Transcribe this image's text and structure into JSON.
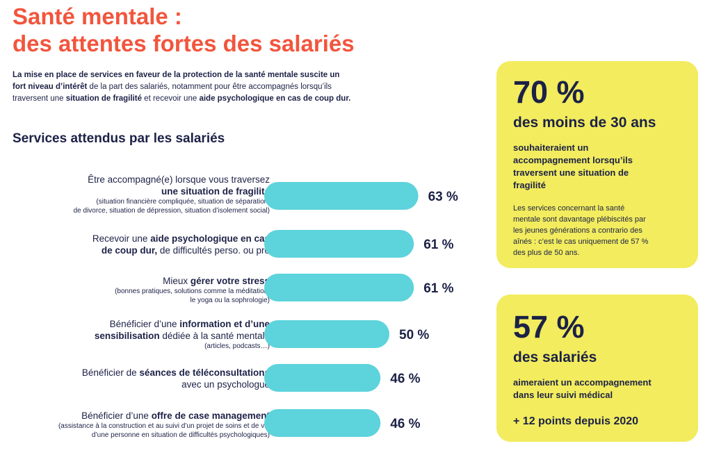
{
  "title": {
    "line1": "Santé mentale :",
    "line2": "des attentes fortes des salariés"
  },
  "intro": {
    "b1": "La mise en place de services en faveur de la protection de la santé mentale suscite un",
    "b2": "fort niveau d’intérêt",
    "t1": " de la part des salariés, notamment pour être accompagnés lorsqu’ils",
    "t2": "traversent une ",
    "b3": "situation de fragilité",
    "t3": " et recevoir une ",
    "b4": "aide psychologique en cas de coup dur."
  },
  "section_title": "Services attendus par les salariés",
  "colors": {
    "title": "#f2553d",
    "bar": "#5dd3dc",
    "card": "#f2ec5e",
    "text": "#1c2146"
  },
  "labels": [
    {
      "l1a": "Être accompagné(e) lorsque vous traversez",
      "l2b": "une situation de fragilité",
      "s1": "(situation financière compliquée, situation de séparation,",
      "s2": "de divorce, situation de dépression, situation d’isolement social)"
    },
    {
      "l1a": "Recevoir une ",
      "l1b": "aide psychologique en cas",
      "l2b": "de coup dur,",
      "l2a": " de difficultés perso. ou pro"
    },
    {
      "l1a": "Mieux ",
      "l1b": "gérer votre stress",
      "s1": "(bonnes pratiques, solutions comme la méditation,",
      "s2": "le yoga ou la sophrologie)"
    },
    {
      "l1a": "Bénéficier d’une ",
      "l1b": "information et d’une",
      "l2b": "sensibilisation",
      "l2a": " dédiée à la santé mentale",
      "s1": "(articles, podcasts…)"
    },
    {
      "l1a": "Bénéficier de ",
      "l1b": "séances de téléconsultations",
      "l2a": "avec un psychologue"
    },
    {
      "l1a": "Bénéficier d’une ",
      "l1b": "offre de case management",
      "s1": "(assistance à la construction et au suivi d’un projet de soins et de vie",
      "s2": "d’une personne en situation de difficultés psychologiques)"
    }
  ],
  "chart_data": {
    "type": "bar",
    "orientation": "horizontal",
    "title": "Services attendus par les salariés",
    "categories": [
      "Être accompagné(e) lorsque vous traversez une situation de fragilité",
      "Recevoir une aide psychologique en cas de coup dur, de difficultés perso. ou pro",
      "Mieux gérer votre stress",
      "Bénéficier d’une information et d’une sensibilisation dédiée à la santé mentale",
      "Bénéficier de séances de téléconsultations avec un psychologue",
      "Bénéficier d’une offre de case management"
    ],
    "values": [
      63,
      61,
      61,
      50,
      46,
      46
    ],
    "value_labels": [
      "63 %",
      "61 %",
      "61 %",
      "50 %",
      "46 %",
      "46 %"
    ],
    "unit": "%",
    "grid": false
  },
  "cards": [
    {
      "big": "70 %",
      "mid": "des moins de 30 ans",
      "txt1": "souhaiteraient un",
      "txt2": "accompagnement lorsqu’ils",
      "txt3": "traversent une situation de",
      "txt4": "fragilité",
      "small1": "Les services concernant la santé",
      "small2": "mentale sont davantage plébiscités par",
      "small3": "les jeunes générations a contrario des",
      "small4": "aînés : c’est le cas uniquement de 57 %",
      "small5": "des plus de 50 ans."
    },
    {
      "big": "57 %",
      "mid": "des salariés",
      "txt1": "aimeraient un accompagnement",
      "txt2": "dans leur suivi médical",
      "pts": "+ 12 points depuis 2020"
    }
  ]
}
